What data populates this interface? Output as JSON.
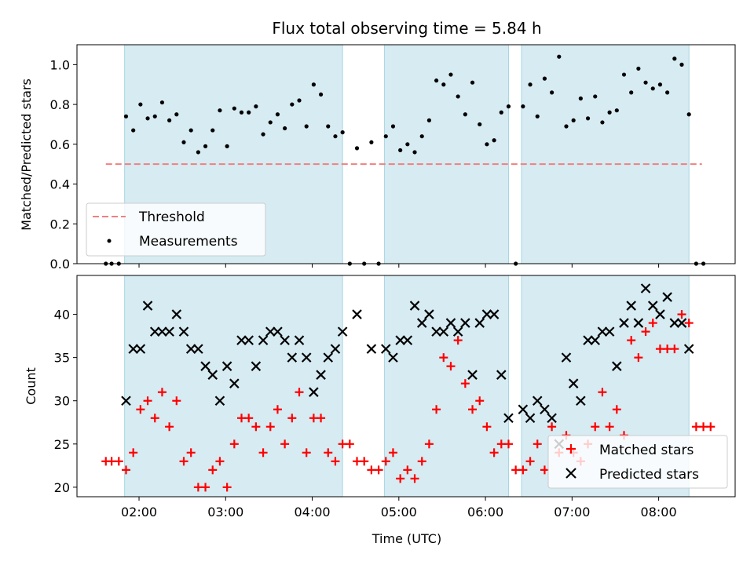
{
  "chart_data": [
    {
      "type": "scatter",
      "title": "Flux total observing time = 5.84 h",
      "ylabel": "Matched/Predicted stars",
      "xlim": [
        "01:17",
        "08:53"
      ],
      "ylim": [
        0,
        1.1
      ],
      "yticks": [
        "0.0",
        "0.2",
        "0.4",
        "0.6",
        "0.8",
        "1.0"
      ],
      "legend": {
        "placement": "lower-left",
        "entries": [
          "Threshold",
          "Measurements"
        ]
      },
      "threshold": {
        "name": "Threshold",
        "y": 0.5,
        "x_range": [
          "01:37",
          "08:30"
        ],
        "color": "#f08080"
      },
      "observing_windows": [
        [
          "01:50",
          "04:21"
        ],
        [
          "04:50",
          "06:16"
        ],
        [
          "06:25",
          "08:21"
        ]
      ],
      "series": [
        {
          "name": "Measurements",
          "color": "#000000",
          "points": [
            [
              "01:37",
              0.0
            ],
            [
              "01:41",
              0.0
            ],
            [
              "01:46",
              0.0
            ],
            [
              "01:51",
              0.74
            ],
            [
              "01:56",
              0.67
            ],
            [
              "02:01",
              0.8
            ],
            [
              "02:06",
              0.73
            ],
            [
              "02:11",
              0.74
            ],
            [
              "02:16",
              0.81
            ],
            [
              "02:21",
              0.72
            ],
            [
              "02:26",
              0.75
            ],
            [
              "02:31",
              0.61
            ],
            [
              "02:36",
              0.67
            ],
            [
              "02:41",
              0.56
            ],
            [
              "02:46",
              0.59
            ],
            [
              "02:51",
              0.67
            ],
            [
              "02:56",
              0.77
            ],
            [
              "03:01",
              0.59
            ],
            [
              "03:06",
              0.78
            ],
            [
              "03:11",
              0.76
            ],
            [
              "03:16",
              0.76
            ],
            [
              "03:21",
              0.79
            ],
            [
              "03:26",
              0.65
            ],
            [
              "03:31",
              0.71
            ],
            [
              "03:36",
              0.75
            ],
            [
              "03:41",
              0.68
            ],
            [
              "03:46",
              0.8
            ],
            [
              "03:51",
              0.82
            ],
            [
              "03:56",
              0.69
            ],
            [
              "04:01",
              0.9
            ],
            [
              "04:06",
              0.85
            ],
            [
              "04:11",
              0.69
            ],
            [
              "04:16",
              0.64
            ],
            [
              "04:21",
              0.66
            ],
            [
              "04:26",
              0.0
            ],
            [
              "04:31",
              0.58
            ],
            [
              "04:36",
              0.0
            ],
            [
              "04:41",
              0.61
            ],
            [
              "04:46",
              0.0
            ],
            [
              "04:51",
              0.64
            ],
            [
              "04:56",
              0.69
            ],
            [
              "05:01",
              0.57
            ],
            [
              "05:06",
              0.6
            ],
            [
              "05:11",
              0.56
            ],
            [
              "05:16",
              0.64
            ],
            [
              "05:21",
              0.72
            ],
            [
              "05:26",
              0.92
            ],
            [
              "05:31",
              0.9
            ],
            [
              "05:36",
              0.95
            ],
            [
              "05:41",
              0.84
            ],
            [
              "05:46",
              0.75
            ],
            [
              "05:51",
              0.91
            ],
            [
              "05:56",
              0.7
            ],
            [
              "06:01",
              0.6
            ],
            [
              "06:06",
              0.62
            ],
            [
              "06:11",
              0.76
            ],
            [
              "06:16",
              0.79
            ],
            [
              "06:21",
              0.0
            ],
            [
              "06:26",
              0.79
            ],
            [
              "06:31",
              0.9
            ],
            [
              "06:36",
              0.74
            ],
            [
              "06:41",
              0.93
            ],
            [
              "06:46",
              0.86
            ],
            [
              "06:51",
              1.04
            ],
            [
              "06:56",
              0.69
            ],
            [
              "07:01",
              0.72
            ],
            [
              "07:06",
              0.83
            ],
            [
              "07:11",
              0.73
            ],
            [
              "07:16",
              0.84
            ],
            [
              "07:21",
              0.71
            ],
            [
              "07:26",
              0.76
            ],
            [
              "07:31",
              0.77
            ],
            [
              "07:36",
              0.95
            ],
            [
              "07:41",
              0.86
            ],
            [
              "07:46",
              0.98
            ],
            [
              "07:51",
              0.91
            ],
            [
              "07:56",
              0.88
            ],
            [
              "08:01",
              0.9
            ],
            [
              "08:06",
              0.86
            ],
            [
              "08:11",
              1.03
            ],
            [
              "08:16",
              1.0
            ],
            [
              "08:21",
              0.75
            ],
            [
              "08:26",
              0.0
            ],
            [
              "08:31",
              0.0
            ]
          ]
        }
      ]
    },
    {
      "type": "scatter",
      "xlabel": "Time (UTC)",
      "ylabel": "Count",
      "xlim": [
        "01:17",
        "08:53"
      ],
      "ylim": [
        18.9,
        44.5
      ],
      "xticks": [
        "02:00",
        "03:00",
        "04:00",
        "05:00",
        "06:00",
        "07:00",
        "08:00"
      ],
      "yticks": [
        "20",
        "25",
        "30",
        "35",
        "40"
      ],
      "legend": {
        "placement": "lower-right",
        "entries": [
          "Matched stars",
          "Predicted stars"
        ]
      },
      "observing_windows": [
        [
          "01:50",
          "04:21"
        ],
        [
          "04:50",
          "06:16"
        ],
        [
          "06:25",
          "08:21"
        ]
      ],
      "series": [
        {
          "name": "Matched stars",
          "marker": "plus",
          "color": "#ff0000",
          "points": [
            [
              "01:37",
              23
            ],
            [
              "01:41",
              23
            ],
            [
              "01:46",
              23
            ],
            [
              "01:51",
              22
            ],
            [
              "01:56",
              24
            ],
            [
              "02:01",
              29
            ],
            [
              "02:06",
              30
            ],
            [
              "02:11",
              28
            ],
            [
              "02:16",
              31
            ],
            [
              "02:21",
              27
            ],
            [
              "02:26",
              30
            ],
            [
              "02:31",
              23
            ],
            [
              "02:36",
              24
            ],
            [
              "02:41",
              20
            ],
            [
              "02:46",
              20
            ],
            [
              "02:51",
              22
            ],
            [
              "02:56",
              23
            ],
            [
              "03:01",
              20
            ],
            [
              "03:06",
              25
            ],
            [
              "03:11",
              28
            ],
            [
              "03:16",
              28
            ],
            [
              "03:21",
              27
            ],
            [
              "03:26",
              24
            ],
            [
              "03:31",
              27
            ],
            [
              "03:36",
              29
            ],
            [
              "03:41",
              25
            ],
            [
              "03:46",
              28
            ],
            [
              "03:51",
              31
            ],
            [
              "03:56",
              24
            ],
            [
              "04:01",
              28
            ],
            [
              "04:06",
              28
            ],
            [
              "04:11",
              24
            ],
            [
              "04:16",
              23
            ],
            [
              "04:21",
              25
            ],
            [
              "04:26",
              25
            ],
            [
              "04:31",
              23
            ],
            [
              "04:36",
              23
            ],
            [
              "04:41",
              22
            ],
            [
              "04:46",
              22
            ],
            [
              "04:51",
              23
            ],
            [
              "04:56",
              24
            ],
            [
              "05:01",
              21
            ],
            [
              "05:06",
              22
            ],
            [
              "05:11",
              21
            ],
            [
              "05:16",
              23
            ],
            [
              "05:21",
              25
            ],
            [
              "05:26",
              29
            ],
            [
              "05:31",
              35
            ],
            [
              "05:36",
              34
            ],
            [
              "05:41",
              37
            ],
            [
              "05:46",
              32
            ],
            [
              "05:51",
              29
            ],
            [
              "05:56",
              30
            ],
            [
              "06:01",
              27
            ],
            [
              "06:06",
              24
            ],
            [
              "06:11",
              25
            ],
            [
              "06:16",
              25
            ],
            [
              "06:21",
              22
            ],
            [
              "06:26",
              22
            ],
            [
              "06:31",
              23
            ],
            [
              "06:36",
              25
            ],
            [
              "06:41",
              22
            ],
            [
              "06:46",
              27
            ],
            [
              "06:51",
              24
            ],
            [
              "06:56",
              26
            ],
            [
              "07:01",
              24
            ],
            [
              "07:06",
              23
            ],
            [
              "07:11",
              25
            ],
            [
              "07:16",
              27
            ],
            [
              "07:21",
              31
            ],
            [
              "07:26",
              27
            ],
            [
              "07:31",
              29
            ],
            [
              "07:36",
              26
            ],
            [
              "07:41",
              37
            ],
            [
              "07:46",
              35
            ],
            [
              "07:51",
              38
            ],
            [
              "07:56",
              39
            ],
            [
              "08:01",
              36
            ],
            [
              "08:06",
              36
            ],
            [
              "08:11",
              36
            ],
            [
              "08:16",
              40
            ],
            [
              "08:21",
              39
            ],
            [
              "08:26",
              27
            ],
            [
              "08:31",
              27
            ],
            [
              "08:36",
              27
            ]
          ]
        },
        {
          "name": "Predicted stars",
          "marker": "x",
          "color": "#000000",
          "points": [
            [
              "01:51",
              30
            ],
            [
              "01:56",
              36
            ],
            [
              "02:01",
              36
            ],
            [
              "02:06",
              41
            ],
            [
              "02:11",
              38
            ],
            [
              "02:16",
              38
            ],
            [
              "02:21",
              38
            ],
            [
              "02:26",
              40
            ],
            [
              "02:31",
              38
            ],
            [
              "02:36",
              36
            ],
            [
              "02:41",
              36
            ],
            [
              "02:46",
              34
            ],
            [
              "02:51",
              33
            ],
            [
              "02:56",
              30
            ],
            [
              "03:01",
              34
            ],
            [
              "03:06",
              32
            ],
            [
              "03:11",
              37
            ],
            [
              "03:16",
              37
            ],
            [
              "03:21",
              34
            ],
            [
              "03:26",
              37
            ],
            [
              "03:31",
              38
            ],
            [
              "03:36",
              38
            ],
            [
              "03:41",
              37
            ],
            [
              "03:46",
              35
            ],
            [
              "03:51",
              37
            ],
            [
              "03:56",
              35
            ],
            [
              "04:01",
              31
            ],
            [
              "04:06",
              33
            ],
            [
              "04:11",
              35
            ],
            [
              "04:16",
              36
            ],
            [
              "04:21",
              38
            ],
            [
              "04:31",
              40
            ],
            [
              "04:41",
              36
            ],
            [
              "04:51",
              36
            ],
            [
              "04:56",
              35
            ],
            [
              "05:01",
              37
            ],
            [
              "05:06",
              37
            ],
            [
              "05:11",
              41
            ],
            [
              "05:16",
              39
            ],
            [
              "05:21",
              40
            ],
            [
              "05:26",
              38
            ],
            [
              "05:31",
              38
            ],
            [
              "05:36",
              39
            ],
            [
              "05:41",
              38
            ],
            [
              "05:46",
              39
            ],
            [
              "05:51",
              33
            ],
            [
              "05:56",
              39
            ],
            [
              "06:01",
              40
            ],
            [
              "06:06",
              40
            ],
            [
              "06:11",
              33
            ],
            [
              "06:16",
              28
            ],
            [
              "06:26",
              29
            ],
            [
              "06:31",
              28
            ],
            [
              "06:36",
              30
            ],
            [
              "06:41",
              29
            ],
            [
              "06:46",
              28
            ],
            [
              "06:51",
              25
            ],
            [
              "06:56",
              35
            ],
            [
              "07:01",
              32
            ],
            [
              "07:06",
              30
            ],
            [
              "07:11",
              37
            ],
            [
              "07:16",
              37
            ],
            [
              "07:21",
              38
            ],
            [
              "07:26",
              38
            ],
            [
              "07:31",
              34
            ],
            [
              "07:36",
              39
            ],
            [
              "07:41",
              41
            ],
            [
              "07:46",
              39
            ],
            [
              "07:51",
              43
            ],
            [
              "07:56",
              41
            ],
            [
              "08:01",
              40
            ],
            [
              "08:06",
              42
            ],
            [
              "08:11",
              39
            ],
            [
              "08:16",
              39
            ],
            [
              "08:21",
              36
            ]
          ]
        }
      ]
    }
  ]
}
